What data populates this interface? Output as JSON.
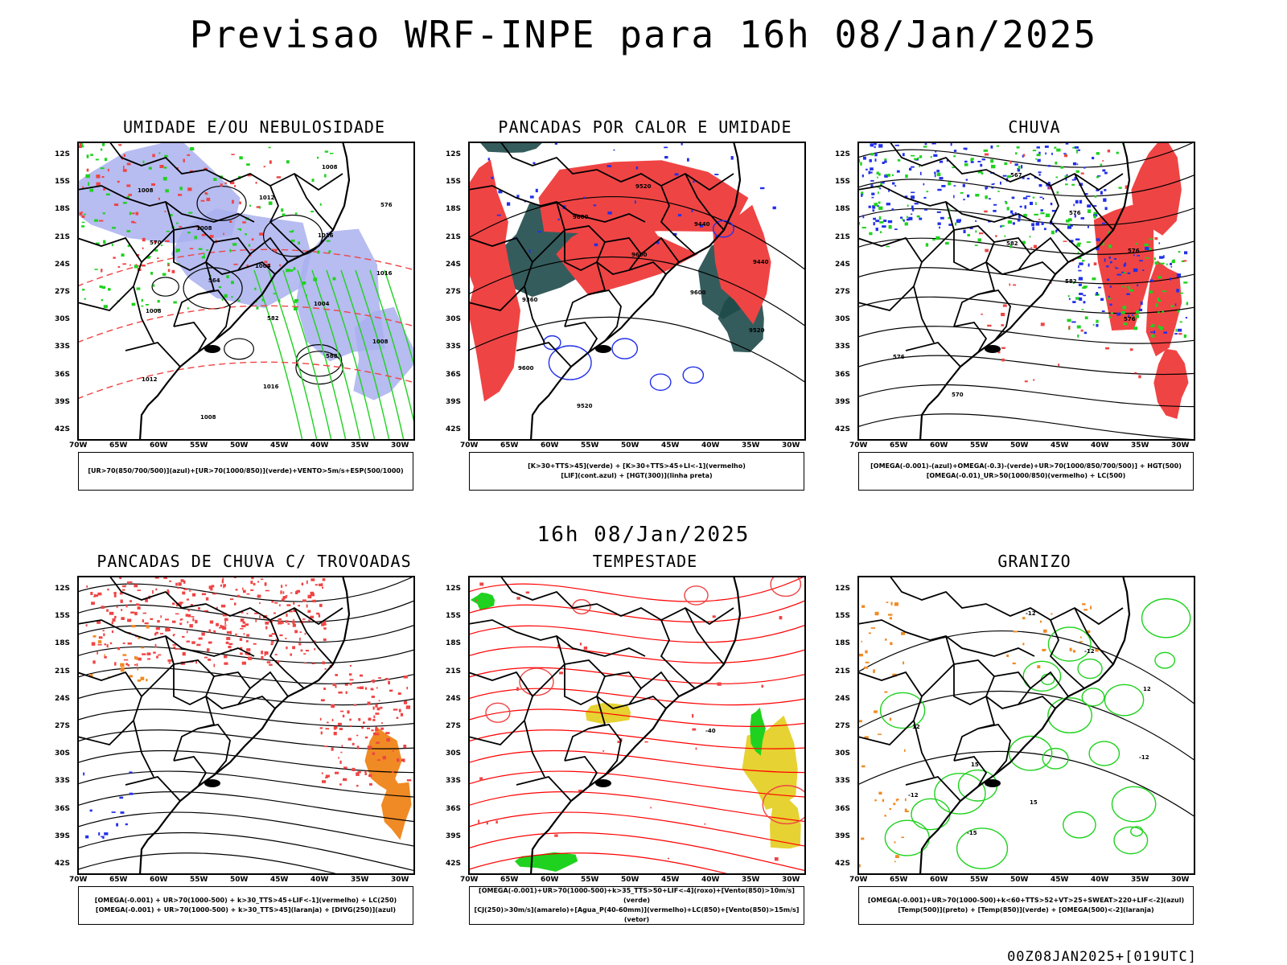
{
  "main_title": "Previsao WRF-INPE  para 16h 08/Jan/2025",
  "mid_date": "16h 08/Jan/2025",
  "footer": "00Z08JAN2025+[019UTC]",
  "axes": {
    "lat_labels": [
      "12S",
      "15S",
      "18S",
      "21S",
      "24S",
      "27S",
      "30S",
      "33S",
      "36S",
      "39S",
      "42S"
    ],
    "lon_labels": [
      "70W",
      "65W",
      "60W",
      "55W",
      "50W",
      "45W",
      "40W",
      "35W",
      "30W"
    ]
  },
  "colors": {
    "red": "#ef4444",
    "green": "#1fd21f",
    "blue": "#2230e8",
    "lavender": "#aab0ee",
    "darkteal": "#1f4a4a",
    "orange": "#f08a24",
    "yellow": "#e6d232"
  },
  "panels": [
    {
      "title": "UMIDADE E/OU NEBULOSIDADE",
      "legend": [
        "[UR>70(850/700/500)](azul)+[UR>70(1000/850)](verde)+VENTO>5m/s+ESP(500/1000)"
      ],
      "labels": [
        "1008",
        "1008",
        "1004",
        "1004",
        "1008",
        "1012",
        "1008",
        "1012",
        "1016",
        "1016",
        "1008",
        "1012",
        "1016",
        "1008",
        "576",
        "570",
        "564",
        "582",
        "588"
      ]
    },
    {
      "title": "PANCADAS POR CALOR E UMIDADE",
      "legend": [
        "[K>30+TTS>45](verde) + [K>30+TTS>45+LI<-1](vermelho)",
        "[LIF](cont.azul) + [HGT(300)](linha preta)"
      ],
      "labels": [
        "9600",
        "9600",
        "9600",
        "9520",
        "9600",
        "9520",
        "9520",
        "9440",
        "9440",
        "9360"
      ]
    },
    {
      "title": "CHUVA",
      "legend": [
        "[OMEGA(-0.001)-(azul)+OMEGA(-0.3)-(verde)+UR>70(1000/850/700/500)] + HGT(500)",
        "[OMEGA(-0.01)_UR>50(1000/850)(vermelho) + LC(500)"
      ],
      "labels": [
        "582",
        "582",
        "576",
        "576",
        "570",
        "567",
        "576",
        "576"
      ]
    },
    {
      "title": "PANCADAS DE CHUVA C/ TROVOADAS",
      "legend": [
        "[OMEGA(-0.001) + UR>70(1000-500) + k>30_TTS>45+LIF<-1](vermelho) + LC(250)",
        "[OMEGA(-0.001) + UR>70(1000-500) + k>30_TTS>45](laranja) + [DIVG(250)](azul)"
      ],
      "labels": []
    },
    {
      "title": "TEMPESTADE",
      "legend": [
        "[OMEGA(-0.001)+UR>70(1000-500)+k>35_TTS>50+LIF<-4](roxo)+[Vento(850)>10m/s](verde)",
        "[CJ(250)>30m/s](amarelo)+[Agua_P(40-60mm)](vermelho)+LC(850)+[Vento(850)>15m/s](vetor)"
      ],
      "labels": [
        "-40"
      ]
    },
    {
      "title": "GRANIZO",
      "legend": [
        "[OMEGA(-0.001)+UR>70(1000-500)+k<60+TTS>52+VT>25+SWEAT>220+LIF<-2](azul)",
        "[Temp(500)](preto) + [Temp(850)](verde) + [OMEGA(500)<-2](laranja)"
      ],
      "labels": [
        "-12",
        "-12",
        "-15",
        "-12",
        "-12",
        "12",
        "12",
        "15",
        "15"
      ]
    }
  ]
}
